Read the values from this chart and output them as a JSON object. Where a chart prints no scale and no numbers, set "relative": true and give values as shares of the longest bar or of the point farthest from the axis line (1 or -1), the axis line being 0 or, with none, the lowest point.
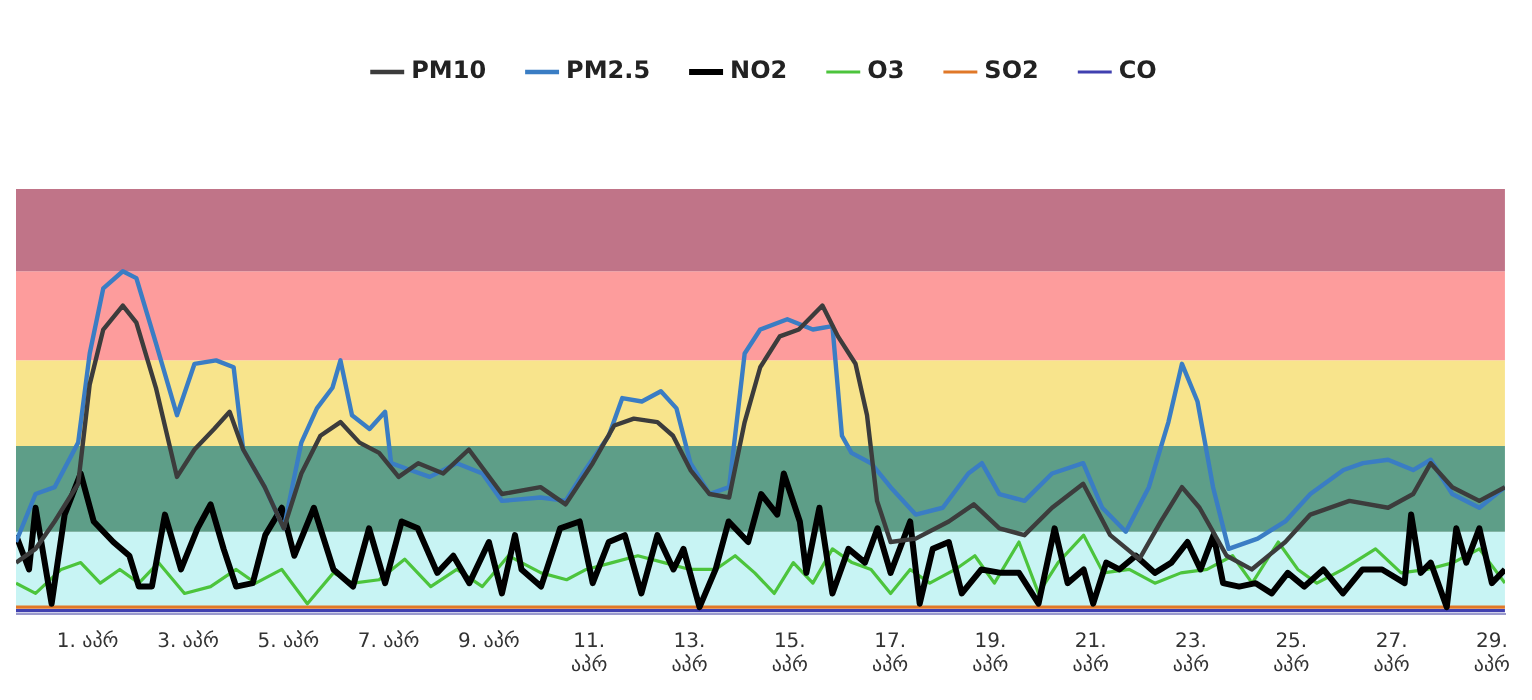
{
  "chart_data": {
    "type": "line",
    "relative": true,
    "legend": "top",
    "marker": "none",
    "line_style": "solid",
    "grid": false,
    "tick_labels": "x",
    "xlim": [
      -0.43,
      29.26
    ],
    "xticks": [
      {
        "value": 1,
        "label": "1. აპრ"
      },
      {
        "value": 3,
        "label": "3. აპრ"
      },
      {
        "value": 5,
        "label": "5. აპრ"
      },
      {
        "value": 7,
        "label": "7. აპრ"
      },
      {
        "value": 9,
        "label": "9. აპრ"
      },
      {
        "value": 11,
        "label": "11. აპრ"
      },
      {
        "value": 13,
        "label": "13. აპრ"
      },
      {
        "value": 15,
        "label": "15. აპრ"
      },
      {
        "value": 17,
        "label": "17. აპრ"
      },
      {
        "value": 19,
        "label": "19. აპრ"
      },
      {
        "value": 21,
        "label": "21. აპრ"
      },
      {
        "value": 23,
        "label": "23. აპრ"
      },
      {
        "value": 25,
        "label": "25. აპრ"
      },
      {
        "value": 27,
        "label": "27. აპრ"
      },
      {
        "value": 29,
        "label": "29. აპრ"
      }
    ],
    "bands": [
      {
        "axis": "y",
        "from": 0.02,
        "to": 0.24,
        "color": "#c8f4f4"
      },
      {
        "axis": "y",
        "from": 0.24,
        "to": 0.49,
        "color": "#5e9e88"
      },
      {
        "axis": "y",
        "from": 0.49,
        "to": 0.74,
        "color": "#f8e48c"
      },
      {
        "axis": "y",
        "from": 0.74,
        "to": 1.0,
        "color": "#fd9c9c"
      },
      {
        "axis": "y",
        "from": 1.0,
        "to": 1.24,
        "color": "#c07488"
      }
    ],
    "series": [
      {
        "name": "PM10",
        "color": "#3c3c3c",
        "x": [
          -0.43,
          -0.04,
          0.34,
          0.81,
          1.04,
          1.31,
          1.7,
          1.97,
          2.36,
          2.78,
          3.13,
          3.52,
          3.83,
          4.1,
          4.53,
          4.91,
          5.26,
          5.64,
          6.04,
          6.42,
          6.81,
          7.2,
          7.59,
          8.09,
          8.6,
          9.26,
          10.03,
          10.53,
          11.07,
          11.5,
          11.89,
          12.36,
          12.67,
          13.02,
          13.4,
          13.79,
          14.1,
          14.41,
          14.8,
          15.18,
          15.65,
          15.96,
          16.31,
          16.54,
          16.74,
          17.01,
          17.51,
          18.17,
          18.67,
          19.18,
          19.68,
          20.23,
          20.85,
          21.39,
          21.97,
          22.4,
          22.82,
          23.17,
          23.71,
          24.21,
          24.88,
          25.38,
          26.16,
          26.93,
          27.43,
          27.78,
          28.21,
          28.75,
          29.26
        ],
        "values": [
          0.15,
          0.19,
          0.27,
          0.38,
          0.67,
          0.83,
          0.9,
          0.85,
          0.66,
          0.4,
          0.48,
          0.54,
          0.59,
          0.48,
          0.37,
          0.25,
          0.41,
          0.52,
          0.56,
          0.5,
          0.47,
          0.4,
          0.44,
          0.41,
          0.48,
          0.35,
          0.37,
          0.32,
          0.44,
          0.55,
          0.57,
          0.56,
          0.52,
          0.42,
          0.35,
          0.34,
          0.56,
          0.72,
          0.81,
          0.83,
          0.9,
          0.81,
          0.73,
          0.58,
          0.33,
          0.21,
          0.22,
          0.27,
          0.32,
          0.25,
          0.23,
          0.31,
          0.38,
          0.23,
          0.16,
          0.27,
          0.37,
          0.31,
          0.17,
          0.13,
          0.21,
          0.29,
          0.33,
          0.31,
          0.35,
          0.44,
          0.37,
          0.33,
          0.37
        ]
      },
      {
        "name": "PM2.5",
        "color": "#3a7dc4",
        "x": [
          -0.43,
          -0.04,
          0.34,
          0.81,
          1.04,
          1.31,
          1.7,
          1.97,
          2.36,
          2.78,
          3.13,
          3.56,
          3.91,
          4.1,
          4.53,
          4.91,
          5.26,
          5.57,
          5.88,
          6.04,
          6.27,
          6.62,
          6.93,
          7.05,
          7.43,
          7.82,
          8.36,
          8.87,
          9.26,
          10.03,
          10.53,
          10.92,
          11.39,
          11.66,
          12.05,
          12.43,
          12.74,
          13.02,
          13.4,
          13.79,
          14.1,
          14.41,
          14.95,
          15.46,
          15.85,
          16.04,
          16.23,
          16.62,
          17.01,
          17.51,
          18.05,
          18.56,
          18.83,
          19.18,
          19.68,
          20.23,
          20.85,
          21.23,
          21.7,
          22.16,
          22.55,
          22.82,
          23.13,
          23.44,
          23.75,
          24.33,
          24.88,
          25.38,
          26.04,
          26.43,
          26.93,
          27.43,
          27.78,
          28.21,
          28.75,
          29.26
        ],
        "values": [
          0.21,
          0.35,
          0.37,
          0.5,
          0.76,
          0.95,
          1.0,
          0.98,
          0.79,
          0.58,
          0.73,
          0.74,
          0.72,
          0.48,
          0.37,
          0.25,
          0.5,
          0.6,
          0.66,
          0.74,
          0.58,
          0.54,
          0.59,
          0.44,
          0.42,
          0.4,
          0.44,
          0.41,
          0.33,
          0.34,
          0.33,
          0.42,
          0.52,
          0.63,
          0.62,
          0.65,
          0.6,
          0.44,
          0.35,
          0.37,
          0.76,
          0.83,
          0.86,
          0.83,
          0.84,
          0.52,
          0.47,
          0.44,
          0.37,
          0.29,
          0.31,
          0.41,
          0.44,
          0.35,
          0.33,
          0.41,
          0.44,
          0.31,
          0.24,
          0.37,
          0.56,
          0.73,
          0.62,
          0.37,
          0.19,
          0.22,
          0.27,
          0.35,
          0.42,
          0.44,
          0.45,
          0.42,
          0.45,
          0.35,
          0.31,
          0.37
        ]
      },
      {
        "name": "NO2",
        "color": "#000000",
        "x": [
          -0.43,
          -0.17,
          -0.04,
          0.28,
          0.54,
          0.86,
          1.12,
          1.51,
          1.83,
          2.02,
          2.28,
          2.54,
          2.86,
          3.19,
          3.45,
          3.71,
          3.96,
          4.29,
          4.54,
          4.87,
          5.12,
          5.51,
          5.9,
          6.29,
          6.61,
          6.93,
          7.26,
          7.58,
          7.97,
          8.29,
          8.61,
          9.0,
          9.26,
          9.52,
          9.65,
          10.04,
          10.42,
          10.81,
          11.07,
          11.39,
          11.71,
          12.04,
          12.36,
          12.68,
          12.88,
          13.2,
          13.52,
          13.78,
          14.17,
          14.43,
          14.75,
          14.88,
          15.2,
          15.33,
          15.59,
          15.85,
          16.17,
          16.5,
          16.75,
          17.01,
          17.4,
          17.59,
          17.85,
          18.17,
          18.43,
          18.82,
          19.21,
          19.57,
          19.96,
          20.28,
          20.54,
          20.86,
          21.05,
          21.31,
          21.57,
          21.9,
          22.28,
          22.61,
          22.93,
          23.19,
          23.45,
          23.64,
          23.96,
          24.29,
          24.61,
          24.93,
          25.26,
          25.64,
          26.03,
          26.42,
          26.81,
          27.26,
          27.39,
          27.58,
          27.78,
          28.1,
          28.29,
          28.49,
          28.75,
          29.0,
          29.26
        ],
        "values": [
          0.23,
          0.13,
          0.31,
          0.03,
          0.29,
          0.41,
          0.27,
          0.21,
          0.17,
          0.08,
          0.08,
          0.29,
          0.13,
          0.25,
          0.32,
          0.19,
          0.08,
          0.09,
          0.23,
          0.31,
          0.17,
          0.31,
          0.13,
          0.08,
          0.25,
          0.09,
          0.27,
          0.25,
          0.12,
          0.17,
          0.09,
          0.21,
          0.06,
          0.23,
          0.13,
          0.08,
          0.25,
          0.27,
          0.09,
          0.21,
          0.23,
          0.06,
          0.23,
          0.13,
          0.19,
          0.02,
          0.13,
          0.27,
          0.21,
          0.35,
          0.29,
          0.41,
          0.27,
          0.12,
          0.31,
          0.06,
          0.19,
          0.15,
          0.25,
          0.12,
          0.27,
          0.03,
          0.19,
          0.21,
          0.06,
          0.13,
          0.12,
          0.12,
          0.03,
          0.25,
          0.09,
          0.13,
          0.03,
          0.15,
          0.13,
          0.17,
          0.12,
          0.15,
          0.21,
          0.13,
          0.23,
          0.09,
          0.08,
          0.09,
          0.06,
          0.12,
          0.08,
          0.13,
          0.06,
          0.13,
          0.13,
          0.09,
          0.29,
          0.12,
          0.15,
          0.02,
          0.25,
          0.15,
          0.25,
          0.09,
          0.13
        ]
      },
      {
        "name": "O3",
        "color": "#4cc43c",
        "x": [
          -0.43,
          -0.04,
          0.47,
          0.86,
          1.25,
          1.64,
          2.02,
          2.41,
          2.93,
          3.45,
          3.96,
          4.35,
          4.87,
          5.38,
          5.9,
          6.29,
          6.81,
          7.32,
          7.84,
          8.36,
          8.87,
          9.39,
          9.65,
          10.04,
          10.55,
          10.94,
          11.46,
          11.97,
          12.49,
          13.01,
          13.52,
          13.91,
          14.3,
          14.69,
          15.07,
          15.46,
          15.85,
          16.24,
          16.62,
          17.01,
          17.4,
          17.79,
          18.3,
          18.69,
          19.08,
          19.57,
          19.96,
          20.35,
          20.86,
          21.25,
          21.77,
          22.28,
          22.8,
          23.32,
          23.83,
          24.22,
          24.74,
          25.13,
          25.51,
          26.03,
          26.68,
          27.19,
          27.71,
          28.23,
          28.75,
          29.26
        ],
        "values": [
          0.09,
          0.06,
          0.13,
          0.15,
          0.09,
          0.13,
          0.09,
          0.15,
          0.06,
          0.08,
          0.13,
          0.09,
          0.13,
          0.03,
          0.12,
          0.09,
          0.1,
          0.16,
          0.08,
          0.13,
          0.08,
          0.17,
          0.15,
          0.12,
          0.1,
          0.13,
          0.15,
          0.17,
          0.15,
          0.13,
          0.13,
          0.17,
          0.12,
          0.06,
          0.15,
          0.09,
          0.19,
          0.15,
          0.13,
          0.06,
          0.13,
          0.09,
          0.13,
          0.17,
          0.09,
          0.21,
          0.06,
          0.15,
          0.23,
          0.12,
          0.13,
          0.09,
          0.12,
          0.13,
          0.17,
          0.09,
          0.21,
          0.13,
          0.09,
          0.13,
          0.19,
          0.12,
          0.13,
          0.15,
          0.19,
          0.09
        ]
      },
      {
        "name": "SO2",
        "color": "#e07828",
        "x": [
          -0.43,
          29.26
        ],
        "values": [
          0.02,
          0.02
        ]
      },
      {
        "name": "CO",
        "color": "#4040b0",
        "x": [
          -0.43,
          29.26
        ],
        "values": [
          0.01,
          0.01
        ]
      }
    ]
  }
}
